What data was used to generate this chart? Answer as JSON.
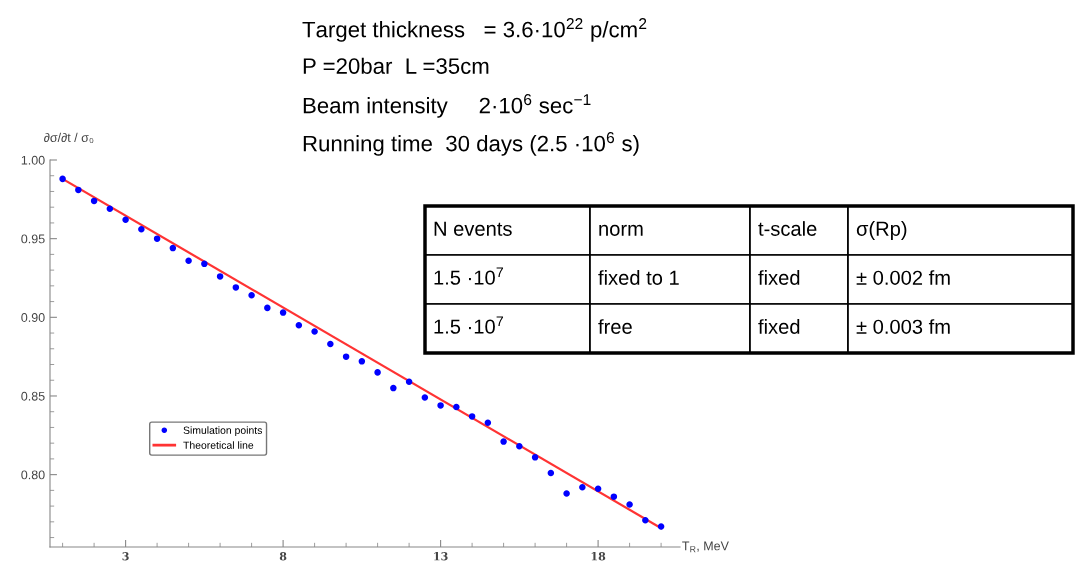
{
  "chart_data": {
    "type": "scatter",
    "ylabel": "∂σ/∂t / σ₀",
    "xlabel": "T$_{R}$, MeV",
    "annotations": [
      "Target thickness   = 3.6·10$^{22}$ p/cm$^{2}$",
      "P =20bar  L =35cm",
      "Beam intensity     2·10$^{6}$ sec$^{−1}$",
      "Running time  30 days (2.5 ·10$^{6}$ s)",
      "N events",
      "norm",
      "t-scale",
      "σ(Rp)",
      "1.5 ·10$^{7}$",
      "fixed to 1",
      "fixed",
      "± 0.002 fm",
      "1.5 ·10$^{7}$",
      "free",
      "fixed",
      "± 0.003 fm"
    ],
    "series": [
      {
        "name": "Simulation points",
        "color": "#0000ff",
        "marker": "circle",
        "x": [
          1,
          1.5,
          2,
          2.5,
          3,
          3.5,
          4,
          4.5,
          5,
          5.5,
          6,
          6.5,
          7,
          7.5,
          8,
          8.5,
          9,
          9.5,
          10,
          10.5,
          11,
          11.5,
          12,
          12.5,
          13,
          13.5,
          14,
          14.5,
          15,
          15.5,
          16,
          16.5,
          17,
          17.5,
          18,
          18.5,
          19,
          19.5,
          20
        ],
        "values": [
          0.988,
          0.981,
          0.974,
          0.969,
          0.962,
          0.956,
          0.95,
          0.944,
          0.936,
          0.934,
          0.926,
          0.919,
          0.914,
          0.906,
          0.903,
          0.895,
          0.891,
          0.883,
          0.875,
          0.872,
          0.865,
          0.855,
          0.859,
          0.849,
          0.844,
          0.843,
          0.837,
          0.833,
          0.821,
          0.818,
          0.811,
          0.801,
          0.788,
          0.792,
          0.791,
          0.786,
          0.781,
          0.771,
          0.767
        ]
      },
      {
        "name": "Theoretical line",
        "type": "line",
        "color": "#ff3333",
        "line_style": "solid",
        "x": [
          1,
          20
        ],
        "values": [
          0.988,
          0.766
        ]
      }
    ],
    "xlim": [
      0.6,
      20.6
    ],
    "ylim": [
      0.754,
      1.0
    ],
    "xticks": [
      3,
      8,
      13,
      18
    ],
    "yticks": [
      {
        "value": 0.8,
        "label": "0.80"
      },
      {
        "value": 0.85,
        "label": "0.85"
      },
      {
        "value": 0.9,
        "label": "0.90"
      },
      {
        "value": 0.95,
        "label": "0.95"
      },
      {
        "value": 1.0,
        "label": "1.00"
      }
    ],
    "grid": false,
    "legend": "left"
  }
}
